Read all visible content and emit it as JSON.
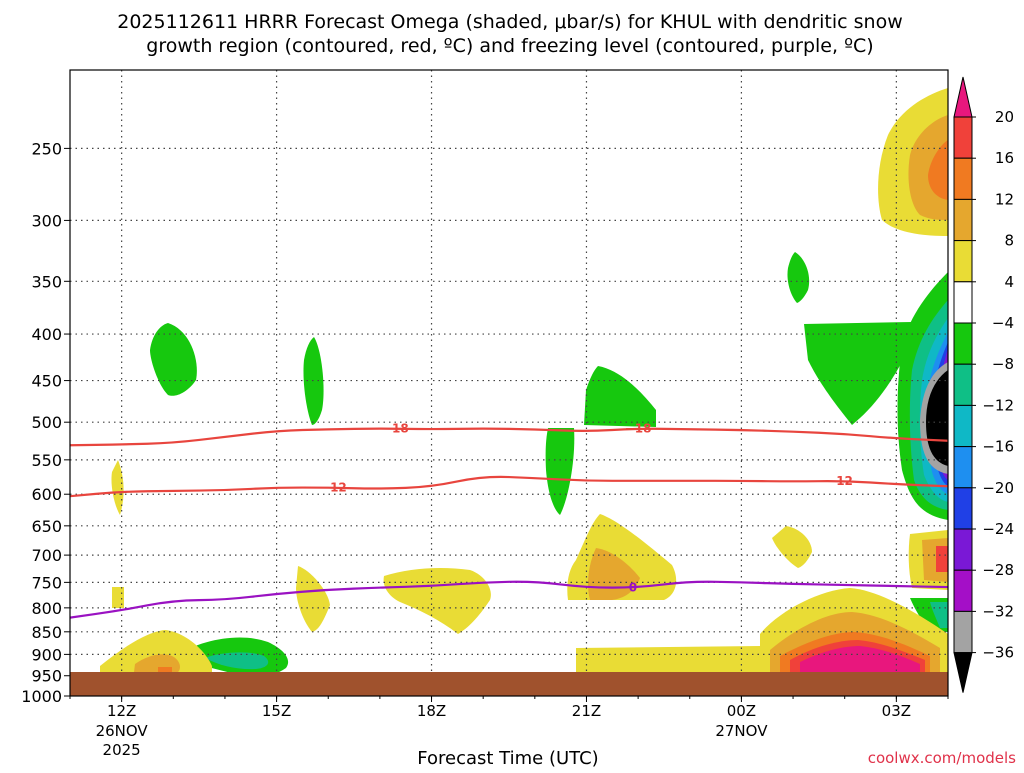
{
  "header": {
    "title_line1": "2025112611 HRRR Forecast Omega (shaded, μbar/s) for KHUL with dendritic snow",
    "title_line2": "growth region (contoured, red, ºC) and freezing level (contoured, purple, ºC)"
  },
  "footer": {
    "credit": "coolwx.com/models"
  },
  "chart_data": {
    "type": "time-height cross section",
    "xlabel": "Forecast Time (UTC)",
    "ylabel": "",
    "y_scale": "log-pressure (inverted)",
    "ylim": [
      1000,
      205
    ],
    "xlim_hours": [
      0,
      17
    ],
    "y_ticks": [
      250,
      300,
      350,
      400,
      450,
      500,
      550,
      600,
      650,
      700,
      750,
      800,
      850,
      900,
      950,
      1000
    ],
    "y_tick_labels": [
      "250",
      "300",
      "350",
      "400",
      "450",
      "500",
      "550",
      "600",
      "650",
      "700",
      "750",
      "800",
      "850",
      "900",
      "950",
      "1000"
    ],
    "x_ticks": [
      {
        "hour": 1,
        "label": "12Z",
        "sub1": "26NOV",
        "sub2": "2025"
      },
      {
        "hour": 4,
        "label": "15Z",
        "sub1": "",
        "sub2": ""
      },
      {
        "hour": 7,
        "label": "18Z",
        "sub1": "",
        "sub2": ""
      },
      {
        "hour": 10,
        "label": "21Z",
        "sub1": "",
        "sub2": ""
      },
      {
        "hour": 13,
        "label": "00Z",
        "sub1": "27NOV",
        "sub2": ""
      },
      {
        "hour": 16,
        "label": "03Z",
        "sub1": "",
        "sub2": ""
      }
    ],
    "grid": true,
    "colorbar": {
      "position": "right",
      "labels": [
        "20",
        "16",
        "12",
        "8",
        "4",
        "−4",
        "−8",
        "−12",
        "−16",
        "−20",
        "−24",
        "−28",
        "−32",
        "−36"
      ],
      "colors": [
        "#e8177d",
        "#f0413a",
        "#f07a21",
        "#e5a72e",
        "#e9dc35",
        "#ffffff",
        "#16c80e",
        "#0fbf86",
        "#0fb8c6",
        "#1e8ff0",
        "#2040e6",
        "#7a18d6",
        "#a40fc7",
        "#a3a3a3",
        "#000000"
      ]
    },
    "contours": [
      {
        "name": "-18",
        "color": "#e8453e",
        "label": "−18",
        "label_hours": [
          6.3,
          11.0
        ],
        "points": [
          [
            0,
            530
          ],
          [
            1,
            529
          ],
          [
            2,
            527
          ],
          [
            3,
            519
          ],
          [
            4,
            511
          ],
          [
            5,
            509
          ],
          [
            6,
            508
          ],
          [
            7,
            509
          ],
          [
            8,
            508
          ],
          [
            9,
            509
          ],
          [
            10,
            512
          ],
          [
            11,
            508
          ],
          [
            12,
            509
          ],
          [
            13,
            510
          ],
          [
            14,
            512
          ],
          [
            15,
            515
          ],
          [
            16,
            521
          ],
          [
            17,
            524
          ]
        ]
      },
      {
        "name": "-12",
        "color": "#e8453e",
        "label": "−12",
        "label_hours": [
          5.1,
          14.9
        ],
        "points": [
          [
            0,
            603
          ],
          [
            1,
            596
          ],
          [
            2,
            595
          ],
          [
            3,
            594
          ],
          [
            4,
            590
          ],
          [
            5,
            590
          ],
          [
            6,
            592
          ],
          [
            7,
            589
          ],
          [
            8,
            573
          ],
          [
            9,
            576
          ],
          [
            10,
            580
          ],
          [
            11,
            580
          ],
          [
            12,
            580
          ],
          [
            13,
            580
          ],
          [
            14,
            581
          ],
          [
            15,
            580
          ],
          [
            16,
            585
          ],
          [
            17,
            588
          ]
        ]
      },
      {
        "name": "0",
        "color": "#9a12c2",
        "label": "0",
        "label_hours": [
          10.9
        ],
        "points": [
          [
            0,
            820
          ],
          [
            1,
            805
          ],
          [
            2,
            785
          ],
          [
            3,
            784
          ],
          [
            4,
            772
          ],
          [
            5,
            764
          ],
          [
            6,
            760
          ],
          [
            7,
            757
          ],
          [
            8,
            750
          ],
          [
            9,
            748
          ],
          [
            10,
            760
          ],
          [
            11,
            760
          ],
          [
            12,
            748
          ],
          [
            13,
            750
          ],
          [
            14,
            753
          ],
          [
            15,
            755
          ],
          [
            16,
            757
          ],
          [
            17,
            759
          ]
        ]
      }
    ]
  }
}
